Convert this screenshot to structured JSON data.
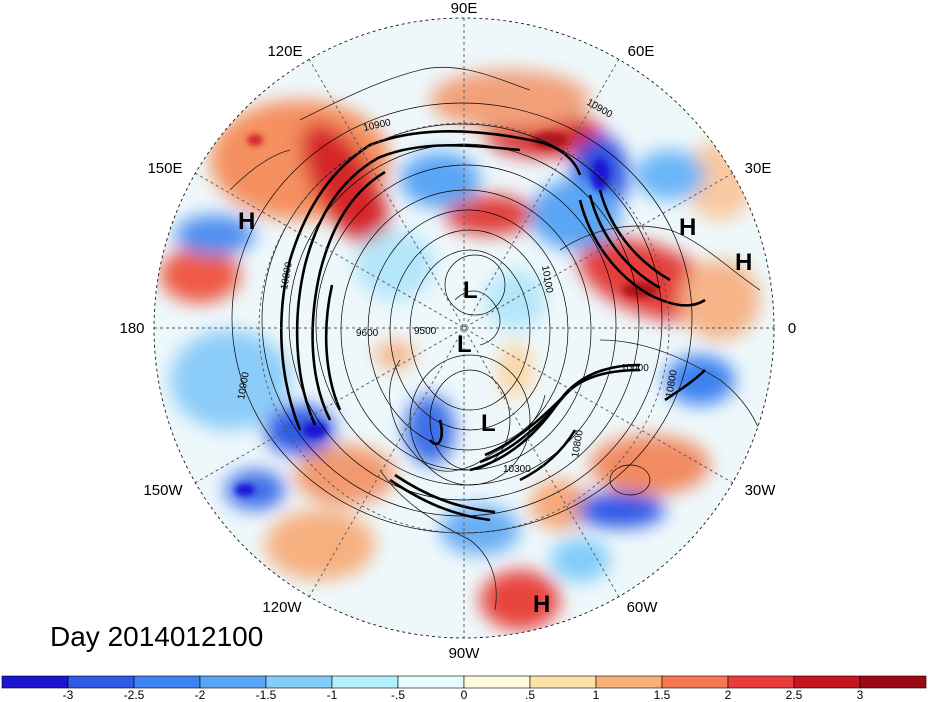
{
  "map": {
    "title": "Day 2014012100",
    "longitude_labels": [
      {
        "text": "90E",
        "name": "lon-label-90e"
      },
      {
        "text": "120E",
        "name": "lon-label-120e"
      },
      {
        "text": "60E",
        "name": "lon-label-60e"
      },
      {
        "text": "150E",
        "name": "lon-label-150e"
      },
      {
        "text": "30E",
        "name": "lon-label-30e"
      },
      {
        "text": "180",
        "name": "lon-label-180"
      },
      {
        "text": "0",
        "name": "lon-label-0"
      },
      {
        "text": "150W",
        "name": "lon-label-150w"
      },
      {
        "text": "30W",
        "name": "lon-label-30w"
      },
      {
        "text": "120W",
        "name": "lon-label-120w"
      },
      {
        "text": "60W",
        "name": "lon-label-60w"
      },
      {
        "text": "90W",
        "name": "lon-label-90w"
      }
    ],
    "pressure_centers": [
      {
        "text": "H",
        "name": "high-marker-pacific"
      },
      {
        "text": "H",
        "name": "high-marker-europe"
      },
      {
        "text": "H",
        "name": "high-marker-east"
      },
      {
        "text": "H",
        "name": "high-marker-atlantic"
      },
      {
        "text": "L",
        "name": "low-marker-1"
      },
      {
        "text": "L",
        "name": "low-marker-2"
      },
      {
        "text": "L",
        "name": "low-marker-3"
      }
    ],
    "contour_labels": [
      "10900",
      "10900",
      "10800",
      "9600",
      "9500",
      "10100",
      "10300",
      "10800",
      "10900",
      "10800",
      "10000"
    ],
    "colorbar": {
      "ticks": [
        "-3",
        "-2.5",
        "-2",
        "-1.5",
        "-1",
        "-.5",
        "0",
        ".5",
        "1",
        "1.5",
        "2",
        "2.5",
        "3"
      ],
      "colors": [
        "#1c14d2",
        "#2e5ae6",
        "#3c82f0",
        "#5aa5f5",
        "#82cdfa",
        "#b4f0fa",
        "#e6fcfc",
        "#fefadc",
        "#fbe3a5",
        "#f8b078",
        "#f57850",
        "#ea3c3c",
        "#c8141e",
        "#9b0a14"
      ]
    }
  }
}
